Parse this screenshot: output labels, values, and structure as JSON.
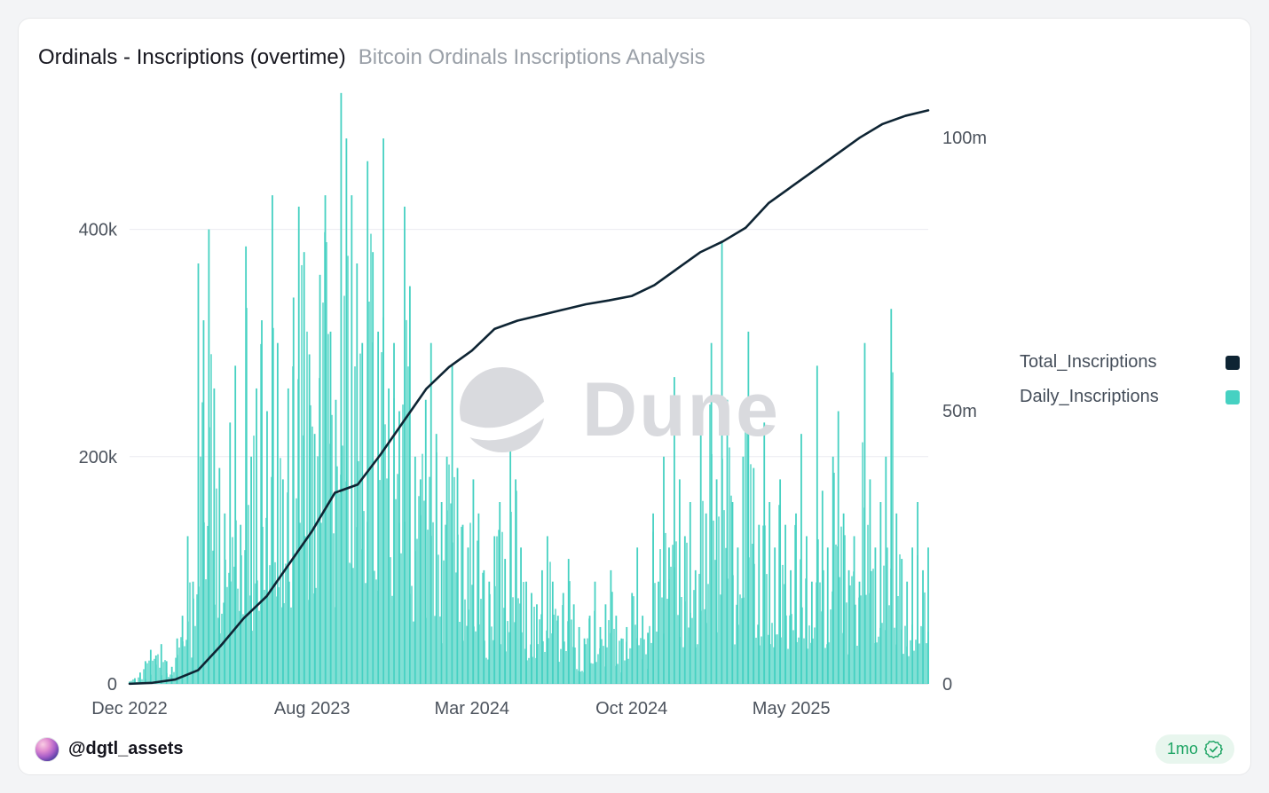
{
  "header": {
    "title": "Ordinals - Inscriptions (overtime)",
    "subtitle": "Bitcoin Ordinals Inscriptions Analysis"
  },
  "watermark": {
    "text": "Dune"
  },
  "legend": {
    "items": [
      {
        "label": "Total_Inscriptions",
        "color": "#0e2433"
      },
      {
        "label": "Daily_Inscriptions",
        "color": "#46d1c2"
      }
    ]
  },
  "footer": {
    "author_handle": "@dgtl_assets",
    "badge_label": "1mo"
  },
  "colors": {
    "bars_teal": "#46d1c2",
    "line_navy": "#0e2433",
    "badge_green": "#1fa565",
    "gridline": "#ececf0",
    "axis_text": "#4c535d"
  },
  "chart_data": {
    "type": "combo",
    "title": "Ordinals - Inscriptions (overtime)",
    "subtitle": "Bitcoin Ordinals Inscriptions Analysis",
    "legend_position": "right",
    "grid": "horizontal",
    "x_axis": {
      "range": [
        "2022-12",
        "2025-11"
      ],
      "months_total": 36,
      "ticks": [
        {
          "label": "Dec 2022",
          "month_index": 0
        },
        {
          "label": "Aug 2023",
          "month_index": 8
        },
        {
          "label": "Mar 2024",
          "month_index": 15
        },
        {
          "label": "Oct 2024",
          "month_index": 22
        },
        {
          "label": "May 2025",
          "month_index": 29
        }
      ]
    },
    "left_axis": {
      "series": "Daily_Inscriptions",
      "max_value": 523000,
      "ticks": [
        {
          "label": "0",
          "value": 0
        },
        {
          "label": "200k",
          "value": 200000
        },
        {
          "label": "400k",
          "value": 400000
        }
      ]
    },
    "right_axis": {
      "series": "Total_Inscriptions",
      "max_value": 108800000,
      "ticks": [
        {
          "label": "0",
          "value": 0
        },
        {
          "label": "50m",
          "value": 50000000
        },
        {
          "label": "100m",
          "value": 100000000
        }
      ]
    },
    "series": [
      {
        "name": "Daily_Inscriptions",
        "chart_type": "bar",
        "color": "#46d1c2",
        "unit": "inscriptions per day",
        "sampling": "weekly peak approximation, Dec 2022 - Nov 2025, read from chart",
        "peak_value": 520000,
        "weekly_values_thousands": [
          2,
          5,
          10,
          20,
          30,
          25,
          35,
          20,
          15,
          40,
          60,
          130,
          90,
          370,
          320,
          400,
          260,
          190,
          150,
          230,
          280,
          140,
          385,
          200,
          260,
          320,
          240,
          430,
          300,
          180,
          260,
          340,
          420,
          380,
          290,
          220,
          360,
          430,
          310,
          250,
          520,
          480,
          430,
          370,
          300,
          460,
          380,
          310,
          480,
          260,
          300,
          240,
          420,
          350,
          200,
          180,
          250,
          300,
          220,
          160,
          200,
          280,
          190,
          140,
          120,
          180,
          150,
          100,
          90,
          130,
          160,
          110,
          230,
          180,
          120,
          90,
          80,
          70,
          100,
          130,
          90,
          60,
          80,
          110,
          70,
          50,
          40,
          60,
          90,
          50,
          70,
          100,
          60,
          40,
          50,
          80,
          120,
          60,
          45,
          150,
          90,
          200,
          120,
          270,
          180,
          130,
          160,
          100,
          220,
          150,
          300,
          180,
          390,
          250,
          160,
          120,
          200,
          310,
          190,
          140,
          230,
          160,
          120,
          180,
          140,
          100,
          150,
          220,
          130,
          90,
          280,
          170,
          120,
          200,
          240,
          150,
          100,
          130,
          90,
          300,
          180,
          120,
          160,
          200,
          330,
          150,
          110,
          90,
          120,
          160,
          100,
          120
        ]
      },
      {
        "name": "Total_Inscriptions",
        "chart_type": "line",
        "color": "#0e2433",
        "unit": "cumulative inscriptions",
        "sampling": "monthly approximation, read from chart",
        "end_value_millions": 105,
        "months": [
          "2022-12",
          "2023-01",
          "2023-02",
          "2023-03",
          "2023-04",
          "2023-05",
          "2023-06",
          "2023-07",
          "2023-08",
          "2023-09",
          "2023-10",
          "2023-11",
          "2023-12",
          "2024-01",
          "2024-02",
          "2024-03",
          "2024-04",
          "2024-05",
          "2024-06",
          "2024-07",
          "2024-08",
          "2024-09",
          "2024-10",
          "2024-11",
          "2024-12",
          "2025-01",
          "2025-02",
          "2025-03",
          "2025-04",
          "2025-05",
          "2025-06",
          "2025-07",
          "2025-08",
          "2025-09",
          "2025-10",
          "2025-11"
        ],
        "monthly_values_millions": [
          0.02,
          0.2,
          0.8,
          2.5,
          7,
          12,
          16,
          22,
          28,
          35,
          36.5,
          42,
          48,
          54,
          58,
          61,
          65,
          66.5,
          67.5,
          68.5,
          69.5,
          70.2,
          71,
          73,
          76,
          79,
          81,
          83.5,
          88,
          91,
          94,
          97,
          100,
          102.5,
          104,
          105
        ]
      }
    ]
  }
}
